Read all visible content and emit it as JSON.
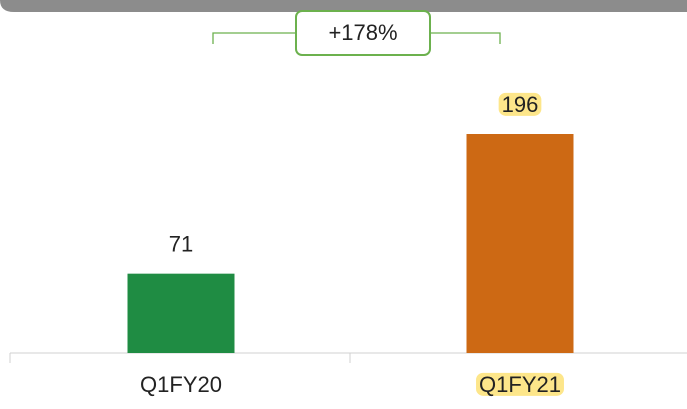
{
  "chart_data": {
    "type": "bar",
    "categories": [
      "Q1FY20",
      "Q1FY21"
    ],
    "values": [
      71,
      196
    ],
    "colors": [
      "#1f8c43",
      "#cd6914"
    ],
    "highlighted": [
      false,
      true
    ],
    "highlight_color": "#fde68a",
    "annotation": "+178%",
    "annotation_color": "#6cb14e"
  }
}
